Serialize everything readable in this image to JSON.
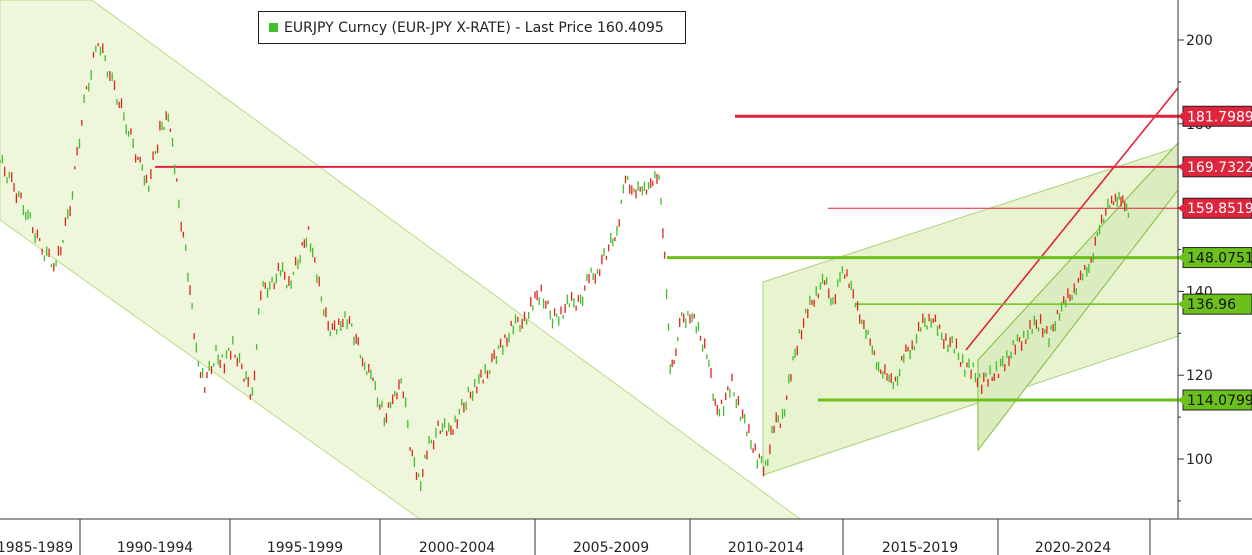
{
  "legend": {
    "label": "EURJPY Curncy (EUR-JPY X-RATE) - Last Price 160.4095",
    "swatch_color": "#3fbf28"
  },
  "chart_data": {
    "type": "line",
    "title": "EURJPY Curncy (EUR-JPY X-RATE) - Last Price 160.4095",
    "xlabel": "",
    "ylabel": "",
    "x_axis_position": "bottom",
    "y_axis_position": "right",
    "xlim": [
      1985.0,
      2027.0
    ],
    "ylim": [
      85,
      210
    ],
    "yticks": [
      100,
      120,
      140,
      160,
      180,
      200
    ],
    "x_period_labels": [
      "1985-1989",
      "1990-1994",
      "1995-1999",
      "2000-2004",
      "2005-2009",
      "2010-2014",
      "2015-2019",
      "2020-2024"
    ],
    "grid": false,
    "legend_position": "top-left",
    "series": [
      {
        "name": "EURJPY Curncy (EUR-JPY X-RATE)",
        "color_up": "#3fbf28",
        "color_down": "#e0241c",
        "x": [
          1985.0,
          1985.5,
          1986.0,
          1986.5,
          1987.0,
          1987.5,
          1988.0,
          1988.5,
          1989.0,
          1989.5,
          1990.0,
          1990.3,
          1990.7,
          1991.0,
          1991.3,
          1991.7,
          1992.0,
          1992.3,
          1992.7,
          1993.0,
          1993.3,
          1993.7,
          1994.0,
          1994.3,
          1994.7,
          1995.0,
          1995.3,
          1995.7,
          1996.0,
          1996.3,
          1996.7,
          1997.0,
          1997.3,
          1997.7,
          1998.0,
          1998.3,
          1998.7,
          1999.0,
          1999.3,
          1999.7,
          2000.0,
          2000.3,
          2000.7,
          2001.0,
          2001.3,
          2001.7,
          2002.0,
          2002.3,
          2002.7,
          2003.0,
          2003.3,
          2003.7,
          2004.0,
          2004.3,
          2004.7,
          2005.0,
          2005.3,
          2005.7,
          2006.0,
          2006.3,
          2006.7,
          2007.0,
          2007.3,
          2007.6,
          2007.9,
          2008.2,
          2008.5,
          2008.7,
          2008.9,
          2009.1,
          2009.3,
          2009.6,
          2009.9,
          2010.2,
          2010.5,
          2010.8,
          2011.1,
          2011.4,
          2011.7,
          2012.0,
          2012.3,
          2012.6,
          2012.9,
          2013.2,
          2013.5,
          2013.8,
          2014.1,
          2014.4,
          2014.7,
          2014.95,
          2015.2,
          2015.5,
          2015.8,
          2016.1,
          2016.4,
          2016.7,
          2017.0,
          2017.3,
          2017.6,
          2017.9,
          2018.2,
          2018.5,
          2018.8,
          2019.1,
          2019.4,
          2019.7,
          2020.0,
          2020.3,
          2020.6,
          2020.9,
          2021.2,
          2021.5,
          2021.8,
          2022.1,
          2022.4,
          2022.7,
          2023.0,
          2023.3,
          2023.6,
          2023.9,
          2024.2,
          2024.5,
          2024.7,
          2024.9,
          2025.1,
          2025.3
        ],
        "values": [
          171,
          165,
          158,
          150,
          146,
          160,
          185,
          200,
          190,
          180,
          170,
          166,
          178,
          183,
          165,
          145,
          125,
          118,
          125,
          123,
          127,
          120,
          115,
          140,
          142,
          145,
          142,
          148,
          155,
          143,
          132,
          130,
          135,
          128,
          123,
          118,
          110,
          113,
          120,
          100,
          95,
          103,
          108,
          106,
          110,
          115,
          118,
          120,
          125,
          128,
          132,
          133,
          137,
          140,
          133,
          135,
          137,
          138,
          143,
          145,
          150,
          155,
          166,
          165,
          163,
          167,
          166,
          150,
          120,
          127,
          133,
          135,
          130,
          126,
          112,
          113,
          118,
          111,
          106,
          100,
          98,
          108,
          110,
          120,
          130,
          135,
          140,
          142,
          138,
          143,
          145,
          136,
          133,
          125,
          122,
          118,
          120,
          125,
          128,
          132,
          134,
          130,
          128,
          126,
          122,
          121,
          118,
          120,
          121,
          124,
          127,
          129,
          131,
          133,
          128,
          135,
          137,
          141,
          143,
          148,
          154,
          162,
          160,
          164,
          159,
          160
        ]
      }
    ],
    "horizontal_levels": [
      {
        "value": 181.7989,
        "label": "181.7989",
        "color": "#e0243c"
      },
      {
        "value": 169.7322,
        "label": "169.7322",
        "color": "#e0243c"
      },
      {
        "value": 159.8519,
        "label": "159.8519",
        "color": "#e0243c"
      },
      {
        "value": 148.0751,
        "label": "148.0751",
        "color": "#6cc01c"
      },
      {
        "value": 136.96,
        "label": "136.96",
        "color": "#6cc01c"
      },
      {
        "value": 114.0799,
        "label": "114.0799",
        "color": "#6cc01c"
      }
    ]
  }
}
